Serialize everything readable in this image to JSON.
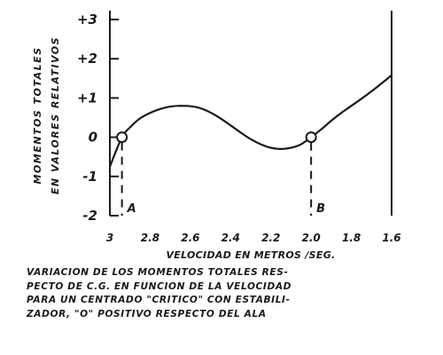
{
  "chart_data": {
    "type": "line",
    "title": "",
    "xlabel": "VELOCIDAD EN METROS /SEG.",
    "ylabel_lines": [
      "MOMENTOS TOTALES",
      "EN VALORES RELATIVOS"
    ],
    "x_tick_labels": [
      "3",
      "2.8",
      "2.6",
      "2.4",
      "2.2",
      "2.0",
      "1.8",
      "1.6"
    ],
    "y_tick_labels": [
      "+3",
      "+2",
      "+1",
      "0",
      "-1",
      "-2"
    ],
    "xlim": [
      3.0,
      1.6
    ],
    "ylim": [
      -2,
      3
    ],
    "x_axis_reversed": true,
    "grid": false,
    "series": [
      {
        "x": [
          3.0,
          2.94,
          2.9,
          2.85,
          2.8,
          2.75,
          2.7,
          2.65,
          2.6,
          2.55,
          2.5,
          2.45,
          2.4,
          2.35,
          2.3,
          2.25,
          2.2,
          2.15,
          2.1,
          2.05,
          2.0,
          1.95,
          1.9,
          1.85,
          1.8,
          1.75,
          1.7,
          1.65,
          1.6
        ],
        "y": [
          -0.75,
          0.0,
          0.25,
          0.48,
          0.62,
          0.72,
          0.78,
          0.8,
          0.79,
          0.74,
          0.63,
          0.48,
          0.3,
          0.12,
          -0.05,
          -0.18,
          -0.27,
          -0.3,
          -0.27,
          -0.18,
          0.0,
          0.2,
          0.42,
          0.62,
          0.8,
          0.98,
          1.17,
          1.37,
          1.58
        ]
      }
    ],
    "annotations": [
      {
        "label": "A",
        "x": 2.94,
        "y": 0
      },
      {
        "label": "B",
        "x": 2.0,
        "y": 0
      }
    ]
  },
  "caption_lines": [
    "VARIACION DE LOS MOMENTOS TOTALES RES-",
    "PECTO DE C.G. EN FUNCION DE LA VELOCIDAD",
    "PARA UN CENTRADO \"CRITICO\" CON ESTABILI-",
    "ZADOR, \"O\" POSITIVO RESPECTO DEL ALA"
  ]
}
